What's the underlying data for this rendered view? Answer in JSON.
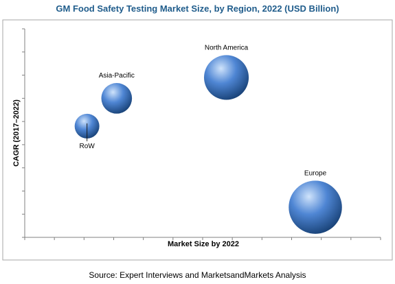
{
  "colors": {
    "title": "#1F5C8B",
    "frame": "#a6a6a6",
    "axis": "#808080",
    "label": "#000000",
    "bubble_light": "#cfe3fb",
    "bubble_mid": "#4f86d4",
    "bubble_dark": "#163f73"
  },
  "chart_data": {
    "type": "scatter",
    "title": "GM Food Safety Testing Market Size, by Region, 2022 (USD Billion)",
    "xlabel": "Market Size by 2022",
    "ylabel": "CAGR (2017–2022)",
    "xlim": [
      0,
      12
    ],
    "ylim": [
      0,
      9
    ],
    "x_ticks": 12,
    "y_ticks": 9,
    "grid": false,
    "legend": "none",
    "source": "Source: Expert Interviews and MarketsandMarkets Analysis",
    "series": [
      {
        "points": [
          {
            "label": "North America",
            "x": 6.8,
            "y": 6.9,
            "size": 1.05,
            "label_position": "above"
          },
          {
            "label": "Asia-Pacific",
            "x": 3.1,
            "y": 6.0,
            "size": 0.72,
            "label_position": "above"
          },
          {
            "label": "RoW",
            "x": 2.1,
            "y": 4.8,
            "size": 0.58,
            "label_position": "below"
          },
          {
            "label": "Europe",
            "x": 9.8,
            "y": 1.3,
            "size": 1.25,
            "label_position": "above"
          }
        ]
      }
    ]
  }
}
